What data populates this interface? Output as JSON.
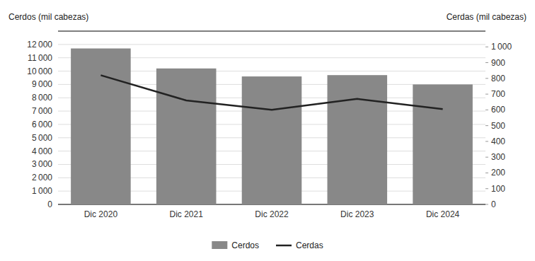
{
  "chart_data": {
    "type": "bar",
    "categories": [
      "Dic 2020",
      "Dic 2021",
      "Dic 2022",
      "Dic 2023",
      "Dic 2024"
    ],
    "series": [
      {
        "name": "Cerdos",
        "type": "bar",
        "color": "#888888",
        "values": [
          11700,
          10200,
          9600,
          9700,
          9000
        ]
      },
      {
        "name": "Cerdas",
        "type": "line",
        "color": "#222222",
        "axis": "y2",
        "values": [
          820,
          660,
          600,
          670,
          605
        ]
      }
    ],
    "y_label": "Cerdos (mil cabezas)",
    "y2_label": "Cerdas (mil cabezas)",
    "ylim": [
      0,
      13000
    ],
    "yticks": [
      0,
      {
        "value": 1000,
        "label": "1 000"
      },
      {
        "value": 2000,
        "label": "2 000"
      },
      {
        "value": 3000,
        "label": "3 000"
      },
      {
        "value": 4000,
        "label": "4 000"
      },
      {
        "value": 5000,
        "label": "5 000"
      },
      {
        "value": 6000,
        "label": "6 000"
      },
      {
        "value": 7000,
        "label": "7 000"
      },
      {
        "value": 8000,
        "label": "8 000"
      },
      {
        "value": 9000,
        "label": "9 000"
      },
      {
        "value": 10000,
        "label": "10 000"
      },
      {
        "value": 11000,
        "label": "11 000"
      },
      {
        "value": 12000,
        "label": "12 000"
      }
    ],
    "y2lim": [
      0,
      1100
    ],
    "y2ticks": [
      0,
      100,
      200,
      300,
      400,
      500,
      600,
      700,
      800,
      900,
      {
        "value": 1000,
        "label": "1 000"
      }
    ],
    "grid": true,
    "legend": "bottom"
  }
}
